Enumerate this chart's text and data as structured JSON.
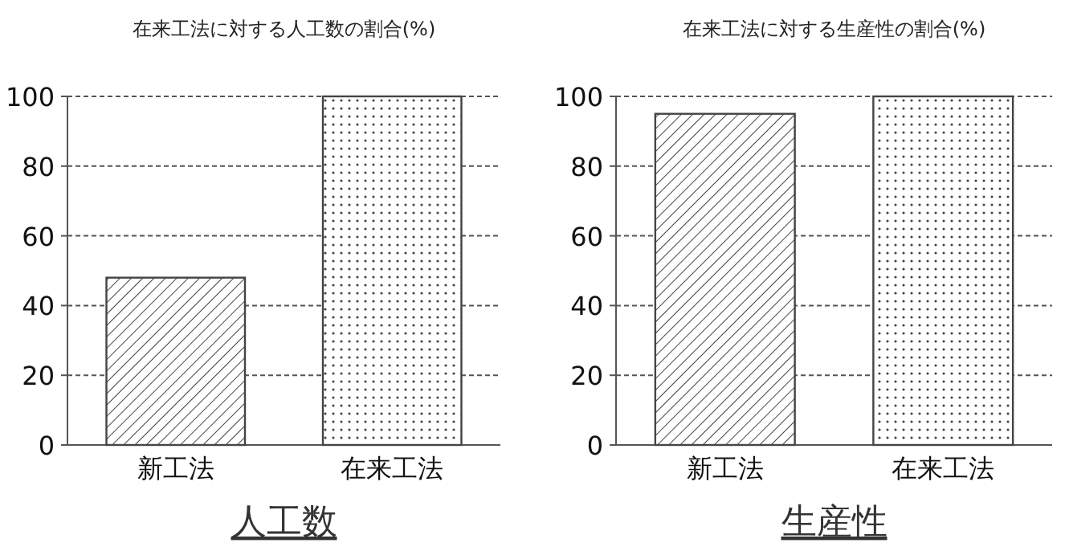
{
  "chart_data": [
    {
      "type": "bar",
      "title": "在来工法に対する人工数の割合(%)",
      "xlabel": "人工数",
      "categories": [
        "新工法",
        "在来工法"
      ],
      "values": [
        48,
        100
      ],
      "colors": [
        "#444444",
        "#444444"
      ],
      "ylim": [
        0,
        100
      ],
      "yticks": [
        0,
        20,
        40,
        60,
        80,
        100
      ],
      "grid": "y"
    },
    {
      "type": "bar",
      "title": "在来工法に対する生産性の割合(%)",
      "xlabel": "生産性",
      "categories": [
        "新工法",
        "在来工法"
      ],
      "values": [
        95,
        100
      ],
      "colors": [
        "#444444",
        "#444444"
      ],
      "ylim": [
        0,
        100
      ],
      "yticks": [
        0,
        20,
        40,
        60,
        80,
        100
      ],
      "grid": "y"
    }
  ]
}
